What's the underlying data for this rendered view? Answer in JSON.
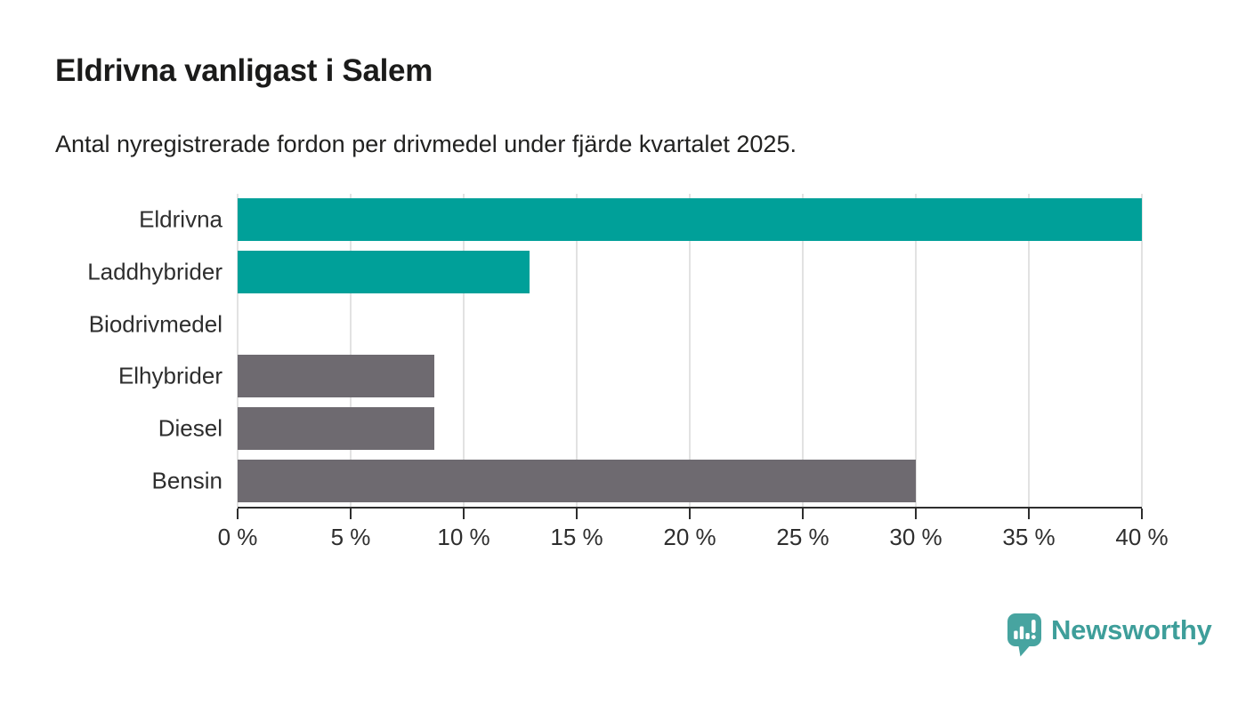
{
  "header": {
    "title": "Eldrivna vanligast i Salem",
    "subtitle": "Antal nyregistrerade fordon per drivmedel under fjärde kvartalet 2025."
  },
  "chart_data": {
    "type": "bar",
    "orientation": "horizontal",
    "title": "Eldrivna vanligast i Salem",
    "subtitle": "Antal nyregistrerade fordon per drivmedel under fjärde kvartalet 2025.",
    "categories": [
      "Eldrivna",
      "Laddhybrider",
      "Biodrivmedel",
      "Elhybrider",
      "Diesel",
      "Bensin"
    ],
    "values": [
      40,
      12.9,
      0,
      8.7,
      8.7,
      30
    ],
    "unit": "%",
    "bar_colors": [
      "#00a099",
      "#00a099",
      "#00a099",
      "#6e6a70",
      "#6e6a70",
      "#6e6a70"
    ],
    "accent_color": "#00a099",
    "neutral_color": "#6e6a70",
    "xlim": [
      0,
      40
    ],
    "xticks": [
      0,
      5,
      10,
      15,
      20,
      25,
      30,
      35,
      40
    ],
    "xtick_labels": [
      "0 %",
      "5 %",
      "10 %",
      "15 %",
      "20 %",
      "25 %",
      "30 %",
      "35 %",
      "40 %"
    ],
    "grid": true,
    "legend_position": "none"
  },
  "branding": {
    "logo_text": "Newsworthy",
    "logo_icon": "bar-chart-speech-bubble-icon",
    "logo_color": "#3e9e9a",
    "logo_badge_color": "#47a4a0"
  }
}
